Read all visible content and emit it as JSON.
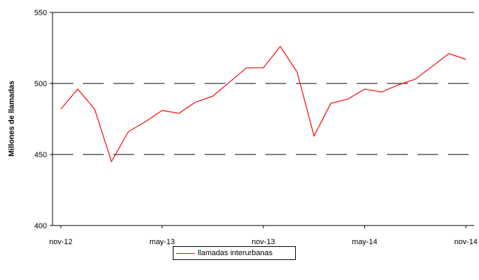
{
  "chart_data": {
    "type": "line",
    "title": "",
    "xlabel": "",
    "ylabel": "Millones de llamadas",
    "ylim": [
      400,
      550
    ],
    "yticks": [
      400,
      450,
      500,
      550
    ],
    "x": [
      "nov-12",
      "dic-12",
      "ene-13",
      "feb-13",
      "mar-13",
      "abr-13",
      "may-13",
      "jun-13",
      "jul-13",
      "ago-13",
      "sep-13",
      "oct-13",
      "nov-13",
      "dic-13",
      "ene-14",
      "feb-14",
      "mar-14",
      "abr-14",
      "may-14",
      "jun-14",
      "jul-14",
      "ago-14",
      "sep-14",
      "oct-14",
      "nov-14"
    ],
    "xtick_labels": [
      "nov-12",
      "may-13",
      "nov-13",
      "may-14",
      "nov-14"
    ],
    "series": [
      {
        "name": "llamadas interurbanas",
        "color": "#ff0000",
        "values": [
          482,
          496,
          482,
          445,
          466,
          473,
          481,
          479,
          487,
          491,
          501,
          511,
          511,
          526,
          508,
          463,
          486,
          489,
          496,
          494,
          499,
          503,
          512,
          521,
          517
        ]
      }
    ],
    "grid": "horizontal dashed at 450 and 500",
    "legend": "bottom-center"
  }
}
